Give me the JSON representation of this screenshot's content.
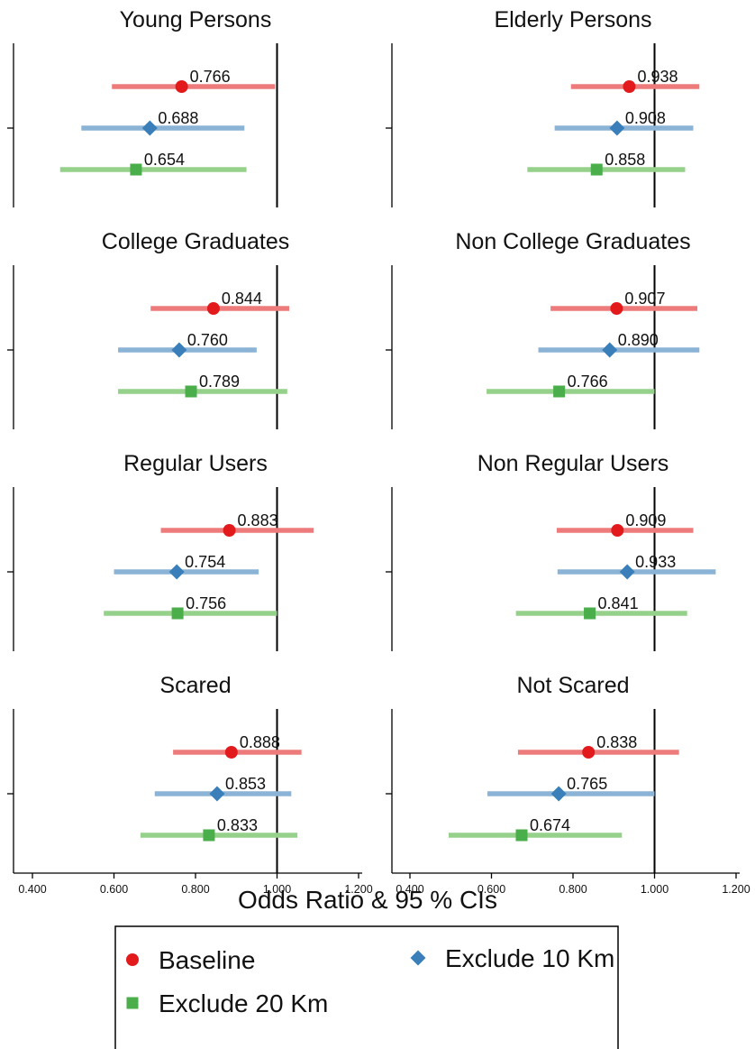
{
  "chart_data": {
    "type": "forest",
    "xlabel": "Odds Ratio & 95 % CIs",
    "xlim": [
      0.4,
      1.2
    ],
    "x_ticks": [
      "0.400",
      "0.600",
      "0.800",
      "1.000",
      "1.200"
    ],
    "reference_line": 1.0,
    "legend": {
      "placement": "bottom",
      "items": [
        {
          "series": "baseline",
          "label": "Baseline"
        },
        {
          "series": "exclude10",
          "label": "Exclude 10 Km"
        },
        {
          "series": "exclude20",
          "label": "Exclude 20 Km"
        }
      ]
    },
    "series_style": {
      "baseline": {
        "marker": "circle",
        "color": "#e31a1c",
        "ci_color": "#ee7b7b"
      },
      "exclude10": {
        "marker": "diamond",
        "color": "#3a7fba",
        "ci_color": "#8bb3d6"
      },
      "exclude20": {
        "marker": "square",
        "color": "#4aae4a",
        "ci_color": "#95d18a"
      }
    },
    "panels": [
      {
        "title": "Young Persons",
        "rows": [
          {
            "series": "baseline",
            "estimate": 0.766,
            "label": "0.766",
            "ci": [
              0.595,
              0.995
            ]
          },
          {
            "series": "exclude10",
            "estimate": 0.688,
            "label": "0.688",
            "ci": [
              0.52,
              0.92
            ]
          },
          {
            "series": "exclude20",
            "estimate": 0.654,
            "label": "0.654",
            "ci": [
              0.468,
              0.925
            ]
          }
        ]
      },
      {
        "title": "Elderly Persons",
        "rows": [
          {
            "series": "baseline",
            "estimate": 0.938,
            "label": "0.938",
            "ci": [
              0.795,
              1.11
            ]
          },
          {
            "series": "exclude10",
            "estimate": 0.908,
            "label": "0.908",
            "ci": [
              0.755,
              1.095
            ]
          },
          {
            "series": "exclude20",
            "estimate": 0.858,
            "label": "0.858",
            "ci": [
              0.688,
              1.075
            ]
          }
        ]
      },
      {
        "title": "College Graduates",
        "rows": [
          {
            "series": "baseline",
            "estimate": 0.844,
            "label": "0.844",
            "ci": [
              0.69,
              1.03
            ]
          },
          {
            "series": "exclude10",
            "estimate": 0.76,
            "label": "0.760",
            "ci": [
              0.61,
              0.95
            ]
          },
          {
            "series": "exclude20",
            "estimate": 0.789,
            "label": "0.789",
            "ci": [
              0.61,
              1.025
            ]
          }
        ]
      },
      {
        "title": "Non College Graduates",
        "rows": [
          {
            "series": "baseline",
            "estimate": 0.907,
            "label": "0.907",
            "ci": [
              0.745,
              1.105
            ]
          },
          {
            "series": "exclude10",
            "estimate": 0.89,
            "label": "0.890",
            "ci": [
              0.715,
              1.11
            ]
          },
          {
            "series": "exclude20",
            "estimate": 0.766,
            "label": "0.766",
            "ci": [
              0.588,
              1.0
            ]
          }
        ]
      },
      {
        "title": "Regular Users",
        "rows": [
          {
            "series": "baseline",
            "estimate": 0.883,
            "label": "0.883",
            "ci": [
              0.715,
              1.09
            ]
          },
          {
            "series": "exclude10",
            "estimate": 0.754,
            "label": "0.754",
            "ci": [
              0.6,
              0.955
            ]
          },
          {
            "series": "exclude20",
            "estimate": 0.756,
            "label": "0.756",
            "ci": [
              0.575,
              1.0
            ]
          }
        ]
      },
      {
        "title": "Non Regular  Users",
        "rows": [
          {
            "series": "baseline",
            "estimate": 0.909,
            "label": "0.909",
            "ci": [
              0.76,
              1.095
            ]
          },
          {
            "series": "exclude10",
            "estimate": 0.933,
            "label": "0.933",
            "ci": [
              0.762,
              1.15
            ]
          },
          {
            "series": "exclude20",
            "estimate": 0.841,
            "label": "0.841",
            "ci": [
              0.66,
              1.08
            ]
          }
        ]
      },
      {
        "title": "Scared",
        "rows": [
          {
            "series": "baseline",
            "estimate": 0.888,
            "label": "0.888",
            "ci": [
              0.745,
              1.06
            ]
          },
          {
            "series": "exclude10",
            "estimate": 0.853,
            "label": "0.853",
            "ci": [
              0.7,
              1.035
            ]
          },
          {
            "series": "exclude20",
            "estimate": 0.833,
            "label": "0.833",
            "ci": [
              0.665,
              1.05
            ]
          }
        ]
      },
      {
        "title": "Not Scared",
        "rows": [
          {
            "series": "baseline",
            "estimate": 0.838,
            "label": "0.838",
            "ci": [
              0.665,
              1.06
            ]
          },
          {
            "series": "exclude10",
            "estimate": 0.765,
            "label": "0.765",
            "ci": [
              0.59,
              1.0
            ]
          },
          {
            "series": "exclude20",
            "estimate": 0.674,
            "label": "0.674",
            "ci": [
              0.495,
              0.92
            ]
          }
        ]
      }
    ]
  }
}
